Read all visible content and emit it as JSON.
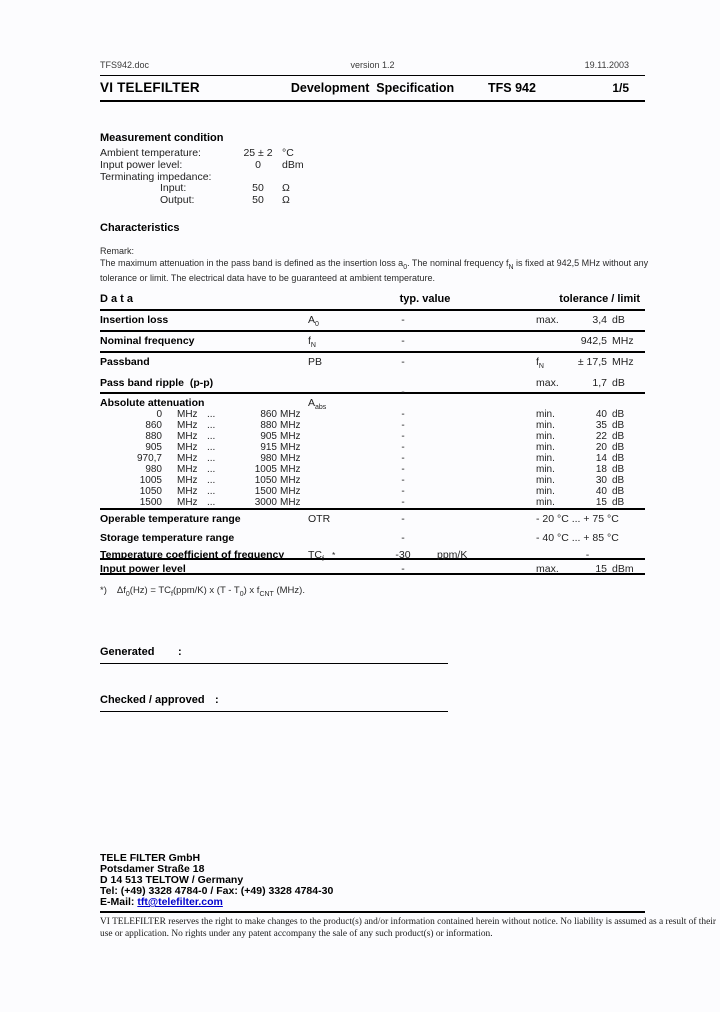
{
  "header": {
    "doc_name": "TFS942.doc",
    "version": "version 1.2",
    "date": "19.11.2003",
    "company": "VI TELEFILTER",
    "title": "Development  Specification",
    "part": "TFS 942",
    "page_no": "1/5"
  },
  "measurement": {
    "heading": "Measurement condition",
    "rows": [
      {
        "label": "Ambient temperature:",
        "value": "25 ± 2",
        "unit": "°C"
      },
      {
        "label": "Input power level:",
        "value": "0",
        "unit": "dBm"
      },
      {
        "label": "Terminating impedance:",
        "value": "",
        "unit": ""
      },
      {
        "label": "Input:",
        "value": "50",
        "unit": "Ω"
      },
      {
        "label": "Output:",
        "value": "50",
        "unit": "Ω"
      }
    ]
  },
  "characteristics": {
    "heading": "Characteristics",
    "remark_label": "Remark:",
    "remark_p1": "The maximum attenuation in the pass band is defined as the insertion loss a",
    "remark_s1": "0",
    "remark_p2": ". The nominal frequency f",
    "remark_s2": "N",
    "remark_p3": " is fixed at 942,5 MHz without any tolerance or limit. The electrical data have to be guaranteed at ambient temperature."
  },
  "table": {
    "header": {
      "data": "D a t a",
      "typ": "typ. value",
      "tol": "tolerance / limit"
    },
    "typ_dash": "-",
    "min_label": "min.",
    "db_unit": "dB",
    "freq_unit": "MHz",
    "dots": "...",
    "rows": {
      "insertion_loss": {
        "name": "Insertion loss",
        "sym_base": "A",
        "sym_sub": "0",
        "typ": "-",
        "tol_q": "max.",
        "tol_v": "3,4",
        "tol_u": "dB"
      },
      "nominal_frequency": {
        "name": "Nominal frequency",
        "sym_base": "f",
        "sym_sub": "N",
        "typ": "-",
        "tol_v": "942,5",
        "tol_u": "MHz"
      },
      "passband": {
        "name": "Passband",
        "sym_base": "PB",
        "typ": "-",
        "tol_q_base": "f",
        "tol_q_sub": "N",
        "tol_v": "± 17,5",
        "tol_u": "MHz"
      },
      "ripple": {
        "name": "Pass band ripple  (p-p)",
        "typ": "-",
        "tol_q": "max.",
        "tol_v": "1,7",
        "tol_u": "dB"
      },
      "absolute_attenuation": {
        "name": "Absolute attenuation",
        "sym_base": "A",
        "sym_sub": "abs"
      },
      "operable_temp": {
        "name": "Operable temperature range",
        "sym_base": "OTR",
        "typ": "-",
        "tol_span": "- 20 °C ... + 75 °C"
      },
      "storage_temp": {
        "name": "Storage temperature range",
        "typ": "-",
        "tol_span": "- 40 °C ... + 85 °C"
      },
      "temp_coeff": {
        "name": "Temperature coefficient of frequency",
        "sym_base": "TC",
        "sym_sub": "f",
        "sym_star": "*",
        "typ": "-30",
        "typ_unit": "ppm/K",
        "tol_span": "-"
      },
      "input_power": {
        "name": "Input power level",
        "typ": "-",
        "tol_q": "max.",
        "tol_v": "15",
        "tol_u": "dBm"
      }
    },
    "freq_rows": [
      {
        "f1": "0",
        "f2": "860",
        "att": "40"
      },
      {
        "f1": "860",
        "f2": "880",
        "att": "35"
      },
      {
        "f1": "880",
        "f2": "905",
        "att": "22"
      },
      {
        "f1": "905",
        "f2": "915",
        "att": "20"
      },
      {
        "f1": "970,7",
        "f2": "980",
        "att": "14"
      },
      {
        "f1": "980",
        "f2": "1005",
        "att": "18"
      },
      {
        "f1": "1005",
        "f2": "1050",
        "att": "30"
      },
      {
        "f1": "1050",
        "f2": "1500",
        "att": "40"
      },
      {
        "f1": "1500",
        "f2": "3000",
        "att": "15"
      }
    ]
  },
  "footnote": {
    "star": "*)",
    "p1": "Δf",
    "s1": "0",
    "p2": "(Hz) = TC",
    "s2": "f",
    "p3": "(ppm/K) x (T - T",
    "s3": "0",
    "p4": ") x f",
    "s4": "CNT",
    "p5": " (MHz)."
  },
  "signoff": {
    "generated_label": "Generated",
    "checked_label": "Checked / approved",
    "colon": ":"
  },
  "footer": {
    "company": "TELE FILTER GmbH",
    "street": "Potsdamer Straße 18",
    "city": "D 14 513 TELTOW / Germany",
    "phone": "Tel: (+49) 3328 4784-0  /  Fax: (+49) 3328 4784-30",
    "email_label": "E-Mail: ",
    "email": "tft@telefilter.com",
    "disclaimer": "VI TELEFILTER reserves the right to make changes to the product(s) and/or information contained herein without notice.  No liability is assumed as a result of their use or application.  No rights under any patent accompany the sale of any such product(s) or information."
  }
}
